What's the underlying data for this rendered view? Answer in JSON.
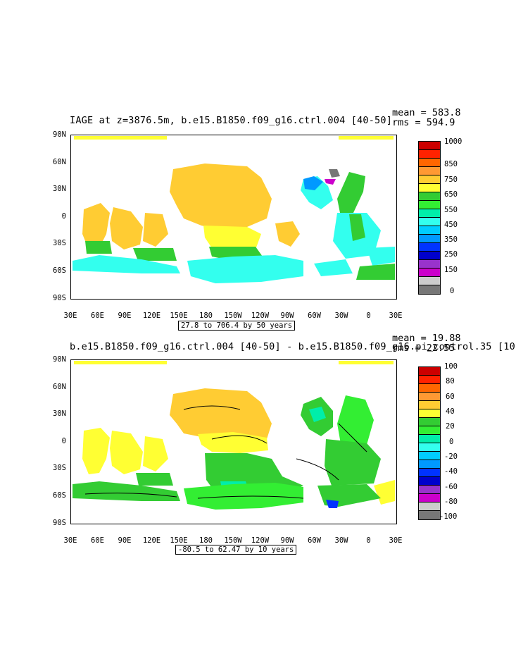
{
  "panel1": {
    "title": "IAGE at z=3876.5m, b.e15.B1850.f09_g16.ctrl.004 [40-50]",
    "stats": {
      "mean": "mean = 583.8",
      "rms": "rms = 594.9"
    },
    "contour_note": "27.8 to 706.4 by 50 years",
    "colorbar_labels": [
      "1000",
      "850",
      "750",
      "650",
      "550",
      "450",
      "350",
      "250",
      "150",
      "0"
    ],
    "colorbar_colors": [
      "#cc0000",
      "#ff2200",
      "#ff6600",
      "#ff9933",
      "#ffcc33",
      "#ffff33",
      "#33cc33",
      "#33ee33",
      "#00eeaa",
      "#33ffee",
      "#00ccff",
      "#0099ff",
      "#0033ff",
      "#0000cc",
      "#9933cc",
      "#cc00cc",
      "#cccccc",
      "#777777"
    ]
  },
  "panel2": {
    "title": "b.e15.B1850.f09_g16.ctrl.004 [40-50] - b.e15.B1850.f09_g16.pi_control.35 [10",
    "stats": {
      "mean": "mean = 19.88",
      "rms": "rms = 22.55"
    },
    "contour_note": "-80.5 to 62.47 by 10 years",
    "colorbar_labels": [
      "100",
      "80",
      "60",
      "40",
      "20",
      "0",
      "-20",
      "-40",
      "-60",
      "-80",
      "-100"
    ],
    "colorbar_colors": [
      "#cc0000",
      "#ff2200",
      "#ff6600",
      "#ff9933",
      "#ffcc33",
      "#ffff33",
      "#33cc33",
      "#33ee33",
      "#00eeaa",
      "#33ffee",
      "#00ccff",
      "#0099ff",
      "#0033ff",
      "#0000cc",
      "#9933cc",
      "#cc00cc",
      "#cccccc",
      "#777777"
    ]
  },
  "axes": {
    "lat_labels": [
      "90N",
      "60N",
      "30N",
      "0",
      "30S",
      "60S",
      "90S"
    ],
    "lon_labels": [
      "30E",
      "60E",
      "90E",
      "120E",
      "150E",
      "180",
      "150W",
      "120W",
      "90W",
      "60W",
      "30W",
      "0",
      "30E"
    ]
  }
}
